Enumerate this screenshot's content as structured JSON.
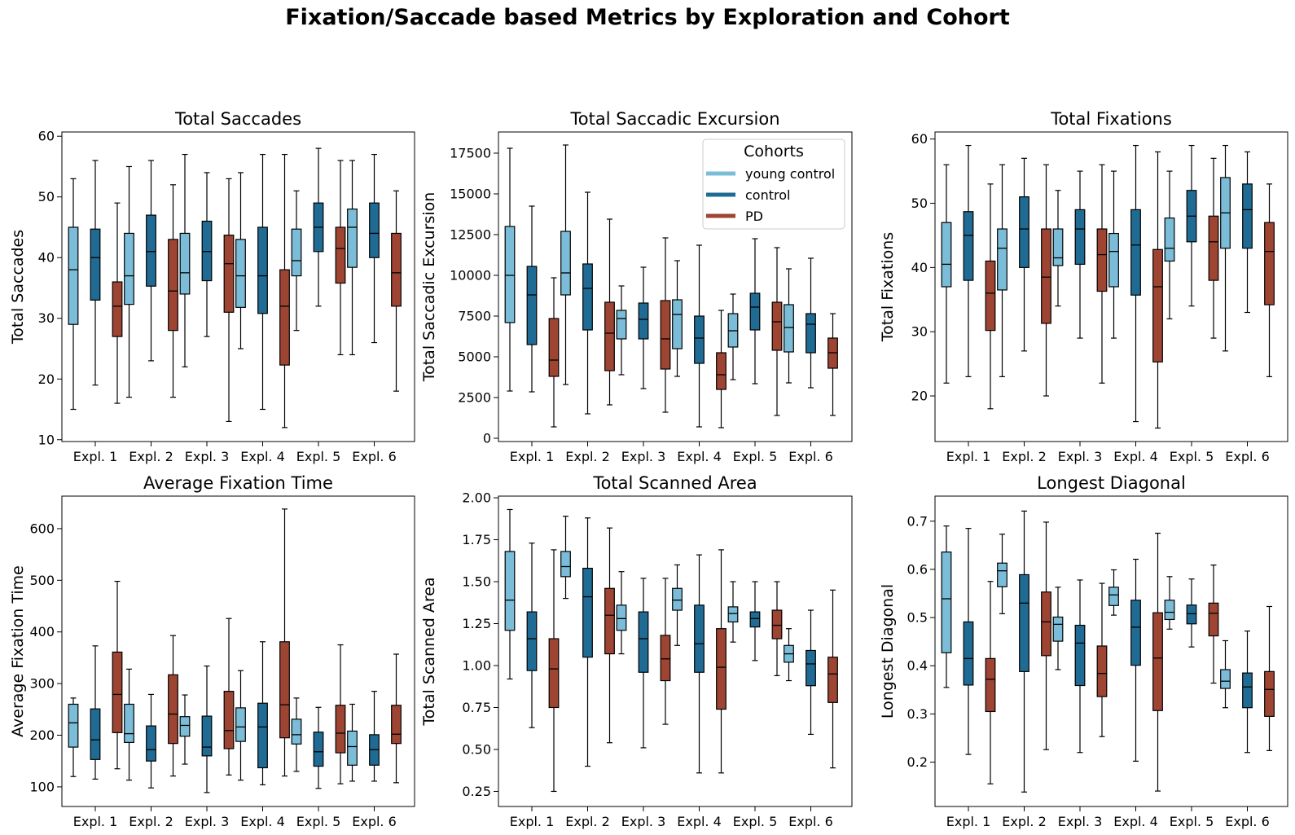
{
  "suptitle": "Fixation/Saccade based Metrics by Exploration and Cohort",
  "colors": {
    "young control": "#7bbcd8",
    "control": "#1f6b94",
    "PD": "#9e4433"
  },
  "legend": {
    "title": "Cohorts",
    "entries": [
      "young control",
      "control",
      "PD"
    ]
  },
  "chart_data": [
    {
      "type": "box",
      "title": "Total Saccades",
      "ylabel": "Total Saccades",
      "ylim": [
        9.7,
        60.7
      ],
      "yticks": [
        10,
        20,
        30,
        40,
        50,
        60
      ],
      "ytick_labels": [
        "10",
        "20",
        "30",
        "40",
        "50",
        "60"
      ],
      "categories": [
        "Expl. 1",
        "Expl. 2",
        "Expl. 3",
        "Expl. 4",
        "Expl. 5",
        "Expl. 6"
      ],
      "series": [
        {
          "name": "young control",
          "boxes": [
            [
              15,
              29,
              38,
              45,
              53
            ],
            [
              17,
              32.3,
              37,
              44,
              55
            ],
            [
              22,
              34,
              37.5,
              44,
              57
            ],
            [
              25,
              31.8,
              37,
              43,
              54
            ],
            [
              28,
              37,
              39.5,
              44.7,
              51
            ],
            [
              24,
              38.4,
              45,
              48,
              56
            ]
          ]
        },
        {
          "name": "control",
          "boxes": [
            [
              19,
              33,
              40,
              44.7,
              56
            ],
            [
              23,
              35.3,
              41,
              47,
              56
            ],
            [
              27,
              36.2,
              41,
              46,
              54
            ],
            [
              15,
              30.8,
              37,
              45,
              57
            ],
            [
              32,
              41,
              45,
              49,
              58
            ],
            [
              26,
              40,
              44,
              49,
              57
            ]
          ]
        },
        {
          "name": "PD",
          "boxes": [
            [
              16,
              27,
              32,
              36,
              49
            ],
            [
              17,
              28,
              34.5,
              43,
              52
            ],
            [
              13,
              31,
              39,
              43.7,
              53
            ],
            [
              12,
              22.3,
              32,
              38,
              57
            ],
            [
              24,
              35.8,
              41.5,
              45,
              56
            ],
            [
              18,
              32,
              37.5,
              44,
              51
            ]
          ]
        }
      ]
    },
    {
      "type": "box",
      "title": "Total Saccadic Excursion",
      "ylabel": "Total Saccadic Excursion",
      "ylim": [
        -200,
        18800
      ],
      "yticks": [
        0,
        2500,
        5000,
        7500,
        10000,
        12500,
        15000,
        17500
      ],
      "ytick_labels": [
        "0",
        "2500",
        "5000",
        "7500",
        "10000",
        "12500",
        "15000",
        "17500"
      ],
      "categories": [
        "Expl. 1",
        "Expl. 2",
        "Expl. 3",
        "Expl. 4",
        "Expl. 5",
        "Expl. 6"
      ],
      "series": [
        {
          "name": "young control",
          "boxes": [
            [
              2900,
              7100,
              10000,
              13000,
              17800
            ],
            [
              3300,
              8800,
              10150,
              12700,
              18000
            ],
            [
              3900,
              6100,
              7350,
              7850,
              9350
            ],
            [
              3800,
              5500,
              7600,
              8500,
              10900
            ],
            [
              3600,
              5600,
              6600,
              7650,
              8850
            ],
            [
              3400,
              5300,
              6800,
              8200,
              10400
            ]
          ]
        },
        {
          "name": "control",
          "boxes": [
            [
              2850,
              5750,
              8800,
              10550,
              14250
            ],
            [
              1500,
              6650,
              9200,
              10700,
              15100
            ],
            [
              3050,
              6100,
              7300,
              8300,
              10500
            ],
            [
              700,
              4600,
              6150,
              7500,
              11850
            ],
            [
              3350,
              6650,
              8050,
              8900,
              12250
            ],
            [
              3100,
              5250,
              7000,
              7650,
              11050
            ]
          ]
        },
        {
          "name": "PD",
          "boxes": [
            [
              700,
              3800,
              4800,
              7350,
              9850
            ],
            [
              2050,
              4150,
              6450,
              8350,
              13450
            ],
            [
              1600,
              4250,
              6100,
              8450,
              12300
            ],
            [
              650,
              3000,
              3900,
              5250,
              7850
            ],
            [
              1400,
              5400,
              7150,
              8350,
              11700
            ],
            [
              1400,
              4300,
              5250,
              6150,
              7650
            ]
          ]
        }
      ]
    },
    {
      "type": "box",
      "title": "Total Fixations",
      "ylabel": "Total Fixations",
      "ylim": [
        12.9,
        61.1
      ],
      "yticks": [
        20,
        30,
        40,
        50,
        60
      ],
      "ytick_labels": [
        "20",
        "30",
        "40",
        "50",
        "60"
      ],
      "categories": [
        "Expl. 1",
        "Expl. 2",
        "Expl. 3",
        "Expl. 4",
        "Expl. 5",
        "Expl. 6"
      ],
      "series": [
        {
          "name": "young control",
          "boxes": [
            [
              22,
              37,
              40.5,
              47,
              56
            ],
            [
              23,
              36.5,
              43,
              46,
              56
            ],
            [
              34,
              40.3,
              41.5,
              46,
              52
            ],
            [
              29,
              37,
              42.5,
              45.3,
              55
            ],
            [
              32,
              41,
              43,
              47.7,
              55
            ],
            [
              27,
              43,
              48.5,
              54,
              59
            ]
          ]
        },
        {
          "name": "control",
          "boxes": [
            [
              23,
              38,
              45,
              48.7,
              59
            ],
            [
              27,
              40,
              46,
              51,
              57
            ],
            [
              29,
              40.5,
              46,
              49,
              55
            ],
            [
              16,
              35.7,
              43.5,
              49,
              59
            ],
            [
              34,
              44,
              48,
              52,
              59
            ],
            [
              33,
              43,
              49,
              53,
              58
            ]
          ]
        },
        {
          "name": "PD",
          "boxes": [
            [
              18,
              30.2,
              36,
              41,
              53
            ],
            [
              20,
              31.3,
              38.5,
              46,
              56
            ],
            [
              22,
              36.3,
              42,
              46,
              56
            ],
            [
              15,
              25.3,
              37,
              42.8,
              58
            ],
            [
              29,
              38,
              44,
              48,
              57
            ],
            [
              23,
              34.2,
              42.5,
              47,
              53
            ]
          ]
        }
      ]
    },
    {
      "type": "box",
      "title": "Average Fixation Time",
      "ylabel": "Average Fixation Time",
      "ylim": [
        62,
        663
      ],
      "yticks": [
        100,
        200,
        300,
        400,
        500,
        600
      ],
      "ytick_labels": [
        "100",
        "200",
        "300",
        "400",
        "500",
        "600"
      ],
      "categories": [
        "Expl. 1",
        "Expl. 2",
        "Expl. 3",
        "Expl. 4",
        "Expl. 5",
        "Expl. 6"
      ],
      "series": [
        {
          "name": "young control",
          "boxes": [
            [
              120,
              177,
              224,
              260,
              272
            ],
            [
              113,
              186,
              203,
              260,
              328
            ],
            [
              144,
              198,
              219,
              236,
              278
            ],
            [
              113,
              188,
              216,
              253,
              325
            ],
            [
              130,
              183,
              201,
              231,
              272
            ],
            [
              111,
              142,
              178,
              208,
              260
            ]
          ]
        },
        {
          "name": "control",
          "boxes": [
            [
              115,
              153,
              191,
              251,
              373
            ],
            [
              98,
              150,
              172,
              218,
              279
            ],
            [
              89,
              160,
              177,
              237,
              334
            ],
            [
              104,
              137,
              216,
              262,
              381
            ],
            [
              97,
              140,
              168,
              206,
              254
            ],
            [
              111,
              142,
              172,
              201,
              285
            ]
          ]
        },
        {
          "name": "PD",
          "boxes": [
            [
              135,
              205,
              279,
              361,
              498
            ],
            [
              121,
              184,
              241,
              317,
              393
            ],
            [
              123,
              174,
              209,
              285,
              426
            ],
            [
              121,
              195,
              259,
              381,
              638
            ],
            [
              106,
              166,
              204,
              258,
              375
            ],
            [
              108,
              184,
              202,
              258,
              357
            ]
          ]
        }
      ]
    },
    {
      "type": "box",
      "title": "Total Scanned Area",
      "ylabel": "Total Scanned Area",
      "ylim": [
        0.16,
        2.01
      ],
      "yticks": [
        0.25,
        0.5,
        0.75,
        1.0,
        1.25,
        1.5,
        1.75,
        2.0
      ],
      "ytick_labels": [
        "0.25",
        "0.50",
        "0.75",
        "1.00",
        "1.25",
        "1.50",
        "1.75",
        "2.00"
      ],
      "categories": [
        "Expl. 1",
        "Expl. 2",
        "Expl. 3",
        "Expl. 4",
        "Expl. 5",
        "Expl. 6"
      ],
      "series": [
        {
          "name": "young control",
          "boxes": [
            [
              0.92,
              1.21,
              1.39,
              1.68,
              1.93
            ],
            [
              1.4,
              1.53,
              1.59,
              1.68,
              1.89
            ],
            [
              1.07,
              1.21,
              1.28,
              1.36,
              1.56
            ],
            [
              1.12,
              1.33,
              1.39,
              1.46,
              1.6
            ],
            [
              1.14,
              1.26,
              1.31,
              1.35,
              1.5
            ],
            [
              0.91,
              1.02,
              1.07,
              1.12,
              1.22
            ]
          ]
        },
        {
          "name": "control",
          "boxes": [
            [
              0.63,
              0.97,
              1.16,
              1.32,
              1.73
            ],
            [
              0.4,
              1.05,
              1.41,
              1.58,
              1.88
            ],
            [
              0.51,
              0.96,
              1.16,
              1.32,
              1.52
            ],
            [
              0.36,
              0.96,
              1.13,
              1.36,
              1.66
            ],
            [
              1.03,
              1.23,
              1.28,
              1.32,
              1.5
            ],
            [
              0.59,
              0.88,
              1.01,
              1.09,
              1.33
            ]
          ]
        },
        {
          "name": "PD",
          "boxes": [
            [
              0.25,
              0.75,
              0.98,
              1.16,
              1.69
            ],
            [
              0.54,
              1.07,
              1.3,
              1.46,
              1.82
            ],
            [
              0.65,
              0.91,
              1.04,
              1.18,
              1.52
            ],
            [
              0.36,
              0.74,
              0.99,
              1.22,
              1.69
            ],
            [
              0.94,
              1.16,
              1.24,
              1.33,
              1.5
            ],
            [
              0.39,
              0.78,
              0.95,
              1.05,
              1.45
            ]
          ]
        }
      ]
    },
    {
      "type": "box",
      "title": "Longest Diagonal",
      "ylabel": "Longest Diagonal",
      "ylim": [
        0.108,
        0.752
      ],
      "yticks": [
        0.2,
        0.3,
        0.4,
        0.5,
        0.6,
        0.7
      ],
      "ytick_labels": [
        "0.2",
        "0.3",
        "0.4",
        "0.5",
        "0.6",
        "0.7"
      ],
      "categories": [
        "Expl. 1",
        "Expl. 2",
        "Expl. 3",
        "Expl. 4",
        "Expl. 5",
        "Expl. 6"
      ],
      "series": [
        {
          "name": "young control",
          "boxes": [
            [
              0.355,
              0.427,
              0.539,
              0.636,
              0.69
            ],
            [
              0.508,
              0.564,
              0.597,
              0.613,
              0.673
            ],
            [
              0.392,
              0.451,
              0.486,
              0.501,
              0.563
            ],
            [
              0.505,
              0.525,
              0.547,
              0.563,
              0.599
            ],
            [
              0.476,
              0.496,
              0.511,
              0.536,
              0.585
            ],
            [
              0.313,
              0.353,
              0.368,
              0.392,
              0.452
            ]
          ]
        },
        {
          "name": "control",
          "boxes": [
            [
              0.216,
              0.36,
              0.415,
              0.491,
              0.685
            ],
            [
              0.138,
              0.388,
              0.53,
              0.589,
              0.721
            ],
            [
              0.22,
              0.359,
              0.447,
              0.484,
              0.578
            ],
            [
              0.202,
              0.401,
              0.48,
              0.536,
              0.621
            ],
            [
              0.439,
              0.487,
              0.508,
              0.526,
              0.58
            ],
            [
              0.22,
              0.313,
              0.356,
              0.385,
              0.472
            ]
          ]
        },
        {
          "name": "PD",
          "boxes": [
            [
              0.155,
              0.305,
              0.372,
              0.415,
              0.575
            ],
            [
              0.226,
              0.421,
              0.491,
              0.553,
              0.698
            ],
            [
              0.253,
              0.336,
              0.384,
              0.441,
              0.571
            ],
            [
              0.14,
              0.307,
              0.416,
              0.51,
              0.675
            ],
            [
              0.364,
              0.462,
              0.509,
              0.53,
              0.609
            ],
            [
              0.224,
              0.295,
              0.351,
              0.388,
              0.523
            ]
          ]
        }
      ]
    }
  ]
}
